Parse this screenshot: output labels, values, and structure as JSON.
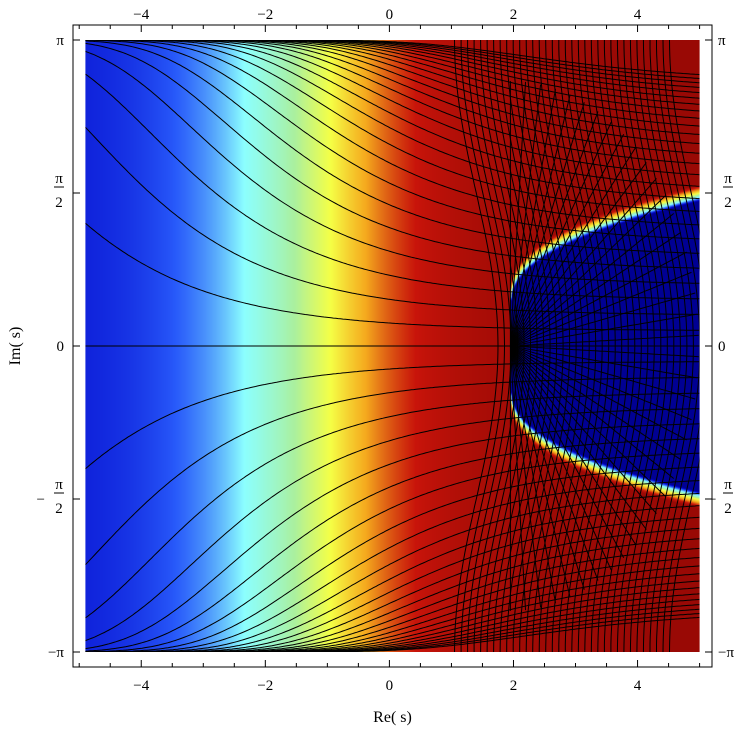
{
  "chart_data": {
    "type": "heatmap",
    "title": "",
    "xlabel": "Re( s)",
    "ylabel": "Im( s)",
    "xlim": [
      -5.1,
      5.2
    ],
    "ylim": [
      -3.1416,
      3.1416
    ],
    "data_xlim": [
      -4.9,
      5.0
    ],
    "x_ticks": [
      -4,
      -2,
      0,
      2,
      4
    ],
    "x_tick_labels": [
      "−4",
      "−2",
      "0",
      "2",
      "4"
    ],
    "y_ticks": [
      {
        "value": 3.1416,
        "label": "π",
        "fraction": false
      },
      {
        "value": 1.5708,
        "label": "π",
        "denominator": "2",
        "sign": "",
        "fraction": true
      },
      {
        "value": 0,
        "label": "0",
        "fraction": false
      },
      {
        "value": -1.5708,
        "label": "π",
        "denominator": "2",
        "sign": "−",
        "fraction": true
      },
      {
        "value": -3.1416,
        "label": "−π",
        "fraction": false
      }
    ],
    "colormap": "jet",
    "color_description": "hue shows the argument of the function: blue on the left, through cyan, yellow to dark red; a blue wedge on the right between ±π/2",
    "contour_lines": "black curves",
    "grid": false,
    "legend": "none"
  }
}
